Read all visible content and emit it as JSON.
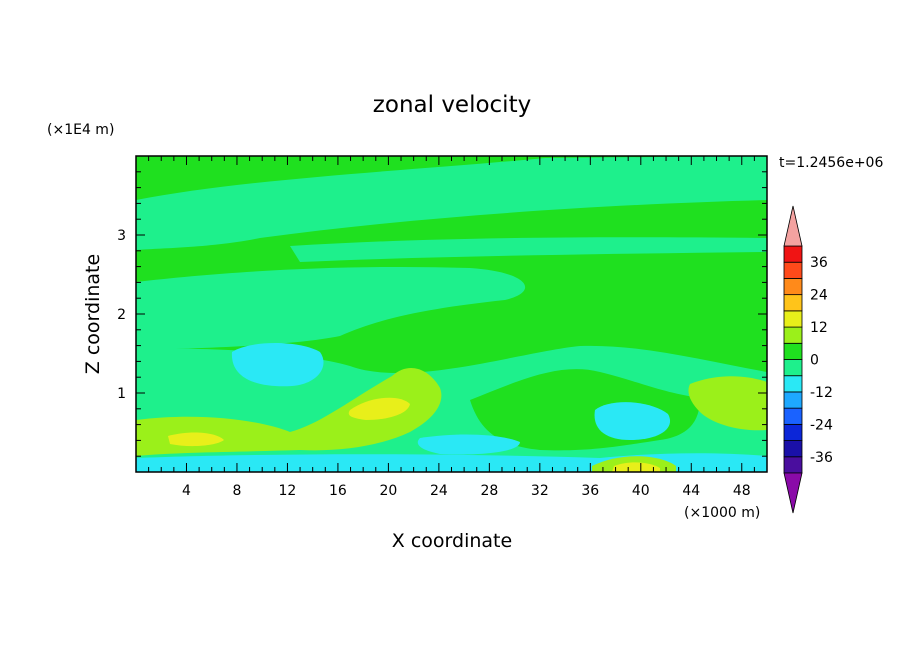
{
  "chart_data": {
    "type": "heatmap",
    "title": "zonal velocity",
    "xlabel": "X coordinate",
    "ylabel": "Z coordinate",
    "x_unit": "(×1000 m)",
    "y_unit": "(×1E4 m)",
    "time_label": "t=1.2456e+06",
    "xlim": [
      0,
      50
    ],
    "ylim": [
      0,
      4
    ],
    "xticks": [
      4,
      8,
      12,
      16,
      20,
      24,
      28,
      32,
      36,
      40,
      44,
      48
    ],
    "yticks": [
      1,
      2,
      3
    ],
    "colorbar": {
      "levels": [
        -42,
        -36,
        -30,
        -24,
        -18,
        -12,
        -6,
        0,
        6,
        12,
        18,
        24,
        30,
        36,
        42
      ],
      "tick_labels": [
        36,
        24,
        12,
        0,
        -12,
        -24,
        -36
      ],
      "colors": [
        "#8a0aa8",
        "#4a0e9e",
        "#1a10a8",
        "#0c26d8",
        "#1a62ff",
        "#1ea8ff",
        "#2ae8f5",
        "#1ef08c",
        "#1fe01f",
        "#9bf01a",
        "#e8ef1a",
        "#ffc41a",
        "#ff8a1a",
        "#ff4a1a",
        "#f01414",
        "#f4a2a0"
      ]
    },
    "regions": [
      {
        "value": "0 to 6",
        "color": "#1fe01f"
      },
      {
        "value": "-6 to 0",
        "color": "#1ef08c"
      },
      {
        "value": "-12 to -6",
        "color": "#2ae8f5"
      },
      {
        "value": "6 to 12",
        "color": "#9bf01a"
      },
      {
        "value": "12 to 18",
        "color": "#e8ef1a"
      }
    ]
  }
}
